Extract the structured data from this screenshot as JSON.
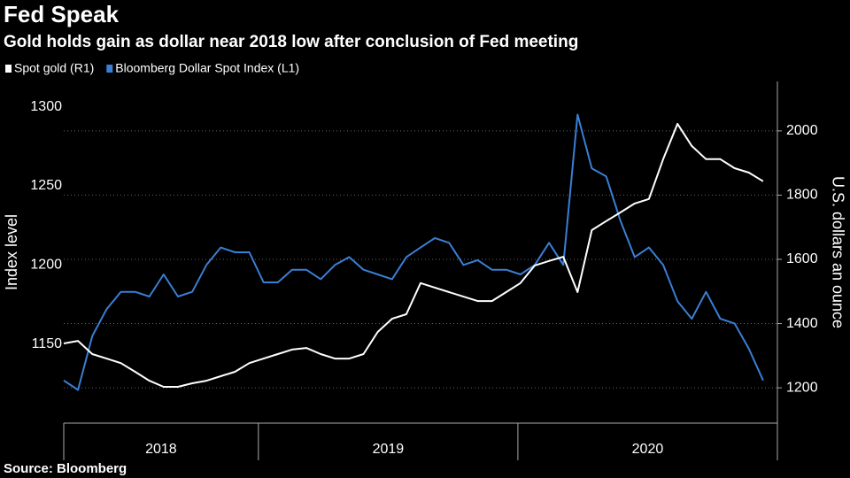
{
  "chart_data": {
    "type": "line",
    "title": "Fed Speak",
    "subtitle": "Gold holds gain as dollar near 2018 low after conclusion of Fed meeting",
    "source": "Source: Bloomberg",
    "y_label": "Index level",
    "y2_label": "U.S. dollars an ounce",
    "x": [
      2018.25,
      2018.305,
      2018.36,
      2018.415,
      2018.47,
      2018.525,
      2018.58,
      2018.635,
      2018.69,
      2018.745,
      2018.8,
      2018.855,
      2018.91,
      2018.965,
      2019.02,
      2019.075,
      2019.13,
      2019.185,
      2019.24,
      2019.295,
      2019.35,
      2019.405,
      2019.46,
      2019.515,
      2019.57,
      2019.625,
      2019.68,
      2019.735,
      2019.79,
      2019.845,
      2019.9,
      2019.955,
      2020.01,
      2020.065,
      2020.12,
      2020.175,
      2020.23,
      2020.285,
      2020.34,
      2020.395,
      2020.45,
      2020.505,
      2020.56,
      2020.615,
      2020.67,
      2020.725,
      2020.78,
      2020.835,
      2020.89,
      2020.945
    ],
    "series": [
      {
        "name": "Spot gold (R1)",
        "color": "#ffffff",
        "axis": "y2",
        "values": [
          1338,
          1346,
          1305,
          1291,
          1277,
          1250,
          1222,
          1203,
          1203,
          1214,
          1222,
          1236,
          1250,
          1277,
          1291,
          1305,
          1319,
          1324,
          1305,
          1291,
          1291,
          1305,
          1374,
          1415,
          1429,
          1526,
          1512,
          1498,
          1484,
          1470,
          1470,
          1498,
          1526,
          1581,
          1595,
          1608,
          1498,
          1691,
          1719,
          1746,
          1774,
          1788,
          1912,
          2022,
          1953,
          1912,
          1912,
          1884,
          1870,
          1843
        ]
      },
      {
        "name": "Bloomberg Dollar Spot Index (L1)",
        "color": "#3a7fd5",
        "axis": "y",
        "values": [
          1127,
          1121,
          1155,
          1172,
          1183,
          1183,
          1180,
          1194,
          1180,
          1183,
          1200,
          1211,
          1208,
          1208,
          1189,
          1189,
          1197,
          1197,
          1191,
          1200,
          1205,
          1197,
          1194,
          1191,
          1205,
          1211,
          1217,
          1214,
          1200,
          1203,
          1197,
          1197,
          1194,
          1200,
          1214,
          1200,
          1295,
          1261,
          1256,
          1228,
          1205,
          1211,
          1200,
          1177,
          1166,
          1183,
          1166,
          1163,
          1147,
          1127
        ]
      }
    ],
    "xlim": [
      2018.25,
      2021.0
    ],
    "xticks": [
      2019,
      2020,
      2021
    ],
    "xlabels": [
      2018,
      2019,
      2020
    ],
    "ylim": [
      1100,
      1316
    ],
    "yticks": [
      1150,
      1200,
      1250,
      1300
    ],
    "y2lim": [
      1090,
      2154
    ],
    "y2ticks": [
      1200,
      1400,
      1600,
      1800,
      2000
    ],
    "grid": true
  }
}
